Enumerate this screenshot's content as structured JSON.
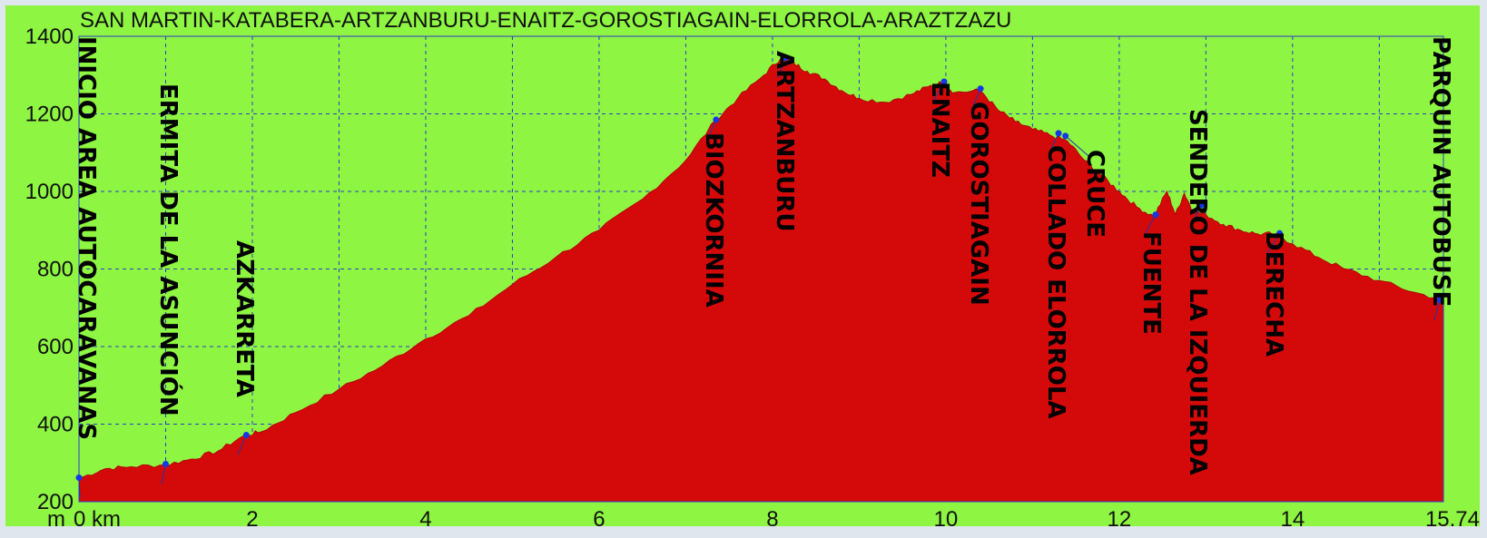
{
  "chart_data": {
    "type": "area",
    "title": "SAN MARTIN-KATABERA-ARTZANBURU-ENAITZ-GOROSTIAGAIN-ELORROLA-ARAZTZAZU",
    "xlabel": "km",
    "ylabel": "m",
    "xlim": [
      0,
      15.74
    ],
    "ylim": [
      200,
      1400
    ],
    "x_ticks": [
      0,
      2,
      4,
      6,
      8,
      10,
      12,
      14,
      15.74
    ],
    "x_tick_labels": [
      "0 km",
      "2",
      "4",
      "6",
      "8",
      "10",
      "12",
      "14",
      "15.74"
    ],
    "y_ticks": [
      200,
      400,
      600,
      800,
      1000,
      1200,
      1400
    ],
    "grid": true,
    "colors": {
      "background": "#8ef542",
      "fill": "#d40a0a",
      "grid": "#2a3fc8",
      "marker": "#1438e6",
      "outer": "#dfe6ee"
    },
    "x": [
      0,
      0.3,
      0.6,
      1.0,
      1.3,
      1.6,
      1.9,
      2.1,
      2.5,
      3.0,
      3.5,
      4.0,
      4.5,
      5.0,
      5.5,
      6.0,
      6.5,
      7.0,
      7.35,
      7.6,
      7.9,
      8.1,
      8.25,
      8.4,
      8.6,
      8.8,
      9.0,
      9.3,
      9.6,
      9.8,
      9.95,
      10.1,
      10.4,
      10.6,
      10.8,
      11.0,
      11.2,
      11.4,
      11.6,
      11.8,
      12.0,
      12.2,
      12.4,
      12.55,
      12.65,
      12.75,
      12.85,
      13.0,
      13.2,
      13.4,
      13.6,
      13.8,
      14.0,
      14.3,
      14.6,
      15.0,
      15.4,
      15.74
    ],
    "y": [
      260,
      285,
      290,
      295,
      310,
      330,
      370,
      380,
      430,
      490,
      550,
      620,
      680,
      760,
      830,
      900,
      980,
      1080,
      1185,
      1240,
      1300,
      1345,
      1330,
      1310,
      1290,
      1260,
      1240,
      1230,
      1250,
      1270,
      1280,
      1255,
      1260,
      1210,
      1180,
      1160,
      1145,
      1130,
      1080,
      1040,
      1000,
      960,
      935,
      1000,
      940,
      995,
      950,
      940,
      915,
      900,
      890,
      890,
      865,
      830,
      800,
      770,
      740,
      720
    ],
    "waypoints": [
      {
        "label": "INICIO AREA AUTOCARAVANAS",
        "x": 0.0,
        "y": 262
      },
      {
        "label": "ERMITA DE LA ASUNCIÓN",
        "x": 1.0,
        "y": 297
      },
      {
        "label": "AZKARRETA",
        "x": 1.93,
        "y": 372
      },
      {
        "label": "BIOZKORNIIA",
        "x": 7.35,
        "y": 1185
      },
      {
        "label": "ARTZANBURU",
        "x": 8.15,
        "y": 1345
      },
      {
        "label": "ENAITZ",
        "x": 9.98,
        "y": 1283
      },
      {
        "label": "GOROSTIAGAIN",
        "x": 10.4,
        "y": 1265
      },
      {
        "label": "COLLADO ELORROLA",
        "x": 11.3,
        "y": 1150
      },
      {
        "label": "CRUCE",
        "x": 11.38,
        "y": 1143
      },
      {
        "label": "FUENTE",
        "x": 12.42,
        "y": 940
      },
      {
        "label": "SENDERO DE LA IZQUIERDA",
        "x": 12.95,
        "y": 965
      },
      {
        "label": "DERECHA",
        "x": 13.85,
        "y": 892
      },
      {
        "label": "PARQUIN AUTOBUSE",
        "x": 15.7,
        "y": 720
      }
    ]
  }
}
